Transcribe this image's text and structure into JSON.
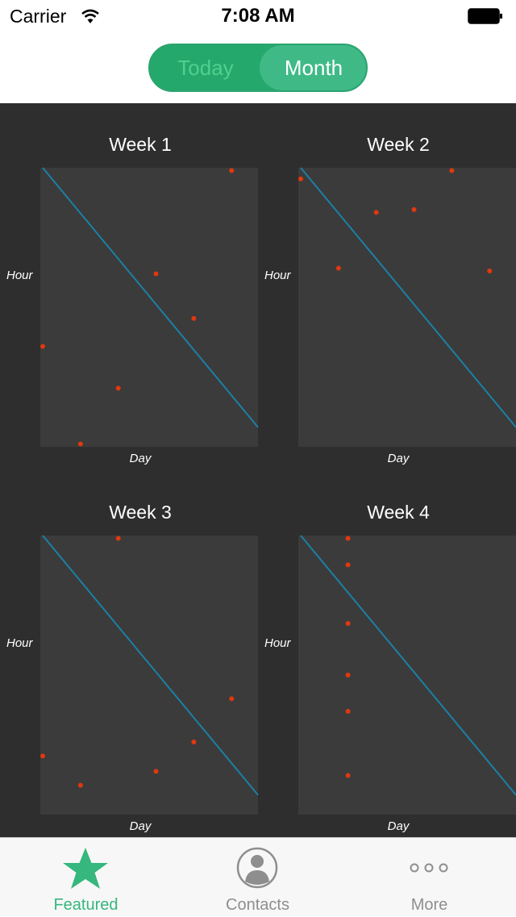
{
  "status_bar": {
    "carrier": "Carrier",
    "time": "7:08 AM"
  },
  "segmented": {
    "today_label": "Today",
    "month_label": "Month",
    "selected": "Month"
  },
  "colors": {
    "accent": "#35b77d",
    "point": "#e0380f",
    "trend_line": "#1d7fa6",
    "plot_bg": "#3b3b3b",
    "chart_bg": "#2e2e2e"
  },
  "chart_data": [
    {
      "type": "scatter",
      "title": "Week 1",
      "xlabel": "Day",
      "ylabel": "Hour",
      "points": [
        [
          0.0,
          0.36
        ],
        [
          1.0,
          0.01
        ],
        [
          2.0,
          0.21
        ],
        [
          3.0,
          0.62
        ],
        [
          4.0,
          0.46
        ],
        [
          5.0,
          0.99
        ]
      ],
      "trend": [
        [
          0,
          1
        ],
        [
          5.7,
          0.07
        ]
      ]
    },
    {
      "type": "scatter",
      "title": "Week 2",
      "xlabel": "Day",
      "ylabel": "Hour",
      "points": [
        [
          0.0,
          0.96
        ],
        [
          1.0,
          0.64
        ],
        [
          2.0,
          0.84
        ],
        [
          3.0,
          0.85
        ],
        [
          4.0,
          0.99
        ],
        [
          5.0,
          0.63
        ]
      ],
      "trend": [
        [
          0,
          1
        ],
        [
          5.7,
          0.07
        ]
      ]
    },
    {
      "type": "scatter",
      "title": "Week 3",
      "xlabel": "Day",
      "ylabel": "Hour",
      "points": [
        [
          0.0,
          0.21
        ],
        [
          1.0,
          0.105
        ],
        [
          2.0,
          0.99
        ],
        [
          3.0,
          0.155
        ],
        [
          4.0,
          0.26
        ],
        [
          5.0,
          0.415
        ]
      ],
      "trend": [
        [
          0,
          1
        ],
        [
          5.7,
          0.07
        ]
      ]
    },
    {
      "type": "scatter",
      "title": "Week 4",
      "xlabel": "Day",
      "ylabel": "Hour",
      "points": [
        [
          1.25,
          0.99
        ],
        [
          1.25,
          0.895
        ],
        [
          1.25,
          0.685
        ],
        [
          1.25,
          0.5
        ],
        [
          1.25,
          0.37
        ],
        [
          1.25,
          0.14
        ]
      ],
      "trend": [
        [
          0,
          1
        ],
        [
          5.7,
          0.07
        ]
      ]
    }
  ],
  "tab_bar": {
    "items": [
      {
        "label": "Featured",
        "icon": "star-icon"
      },
      {
        "label": "Contacts",
        "icon": "contact-icon"
      },
      {
        "label": "More",
        "icon": "more-icon"
      }
    ]
  }
}
